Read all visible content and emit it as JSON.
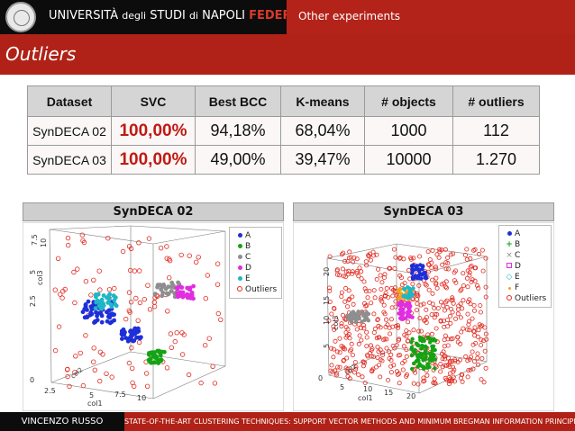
{
  "header": {
    "uni_a": "UNIVERSITÀ",
    "uni_b": "degli",
    "uni_c": "STUDI",
    "uni_d": "di",
    "uni_e": "NAPOLI",
    "uni_f": "FEDERICO II",
    "topic": "Other experiments"
  },
  "slide": {
    "title": "Outliers"
  },
  "table": {
    "headers": [
      "Dataset",
      "SVC",
      "Best BCC",
      "K-means",
      "# objects",
      "# outliers"
    ],
    "rows": [
      [
        "SynDECA 02",
        "100,00%",
        "94,18%",
        "68,04%",
        "1000",
        "112"
      ],
      [
        "SynDECA 03",
        "100,00%",
        "49,00%",
        "39,47%",
        "10000",
        "1.270"
      ]
    ]
  },
  "panels": {
    "left": {
      "title": "SynDECA 02",
      "axis_x": "col1",
      "axis_y": "col2",
      "axis_z": "col3",
      "ticks_x": [
        "0",
        "2.5",
        "5",
        "7.5",
        "10"
      ],
      "ticks_z": [
        "2.5",
        "5",
        "7.5",
        "10"
      ],
      "legend": [
        {
          "label": "A",
          "color": "#1f2fd8",
          "marker": "dot"
        },
        {
          "label": "B",
          "color": "#15a315",
          "marker": "dot"
        },
        {
          "label": "C",
          "color": "#8e8e8e",
          "marker": "dot"
        },
        {
          "label": "D",
          "color": "#e02ee0",
          "marker": "dot"
        },
        {
          "label": "E",
          "color": "#1fb6c6",
          "marker": "dot"
        },
        {
          "label": "Outliers",
          "color": "#e02a20",
          "marker": "circle"
        }
      ]
    },
    "right": {
      "title": "SynDECA 03",
      "axis_x": "col1",
      "axis_y": "col2",
      "axis_z": "col3",
      "ticks_x": [
        "0",
        "5",
        "10",
        "15",
        "20"
      ],
      "ticks_z": [
        "5",
        "10",
        "15",
        "20"
      ],
      "legend": [
        {
          "label": "A",
          "color": "#1f2fd8",
          "marker": "dot"
        },
        {
          "label": "B",
          "color": "#15a315",
          "marker": "plus"
        },
        {
          "label": "C",
          "color": "#8e8e8e",
          "marker": "cross"
        },
        {
          "label": "D",
          "color": "#e02ee0",
          "marker": "square"
        },
        {
          "label": "E",
          "color": "#1fb6c6",
          "marker": "diamond"
        },
        {
          "label": "F",
          "color": "#f2a21b",
          "marker": "dot"
        },
        {
          "label": "Outliers",
          "color": "#e02a20",
          "marker": "circle"
        }
      ]
    }
  },
  "footer": {
    "author": "VINCENZO RUSSO",
    "title": "STATE-OF-THE-ART CLUSTERING TECHNIQUES: SUPPORT VECTOR METHODS AND MINIMUM BREGMAN INFORMATION PRINCIPLE"
  }
}
